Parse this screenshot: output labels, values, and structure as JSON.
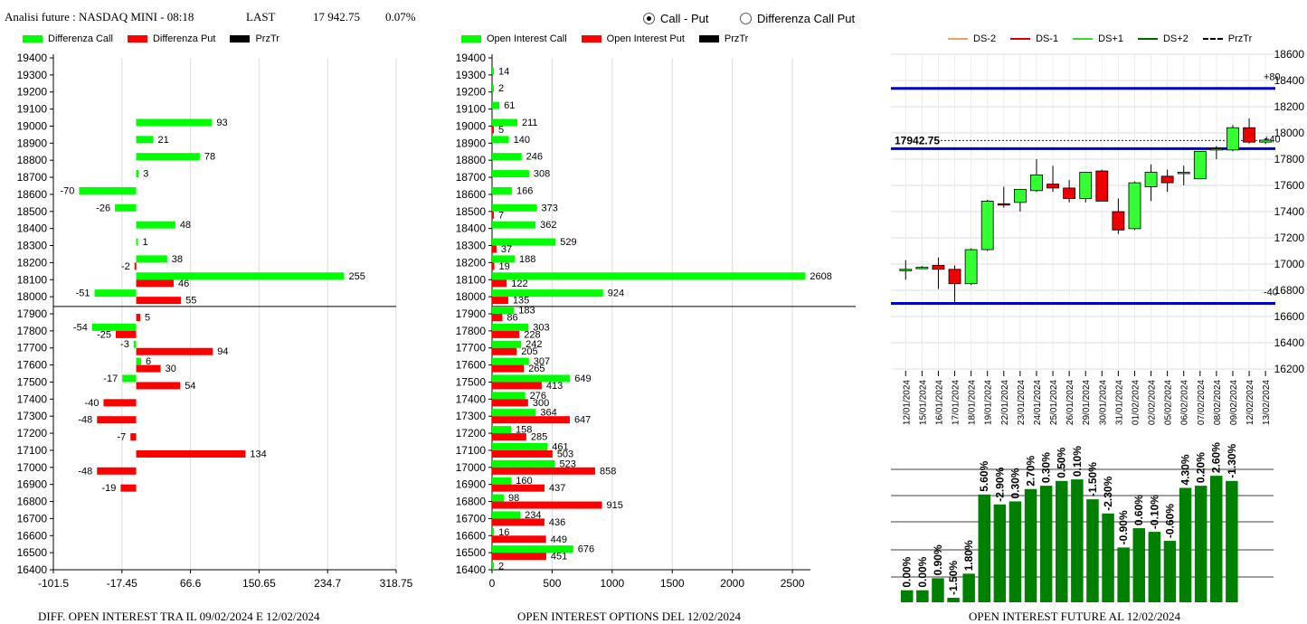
{
  "header": {
    "title": "Analisi future : NASDAQ MINI - 08:18",
    "last_label": "LAST",
    "last_value": "17 942.75",
    "change": "0.07%"
  },
  "mode": {
    "options": [
      "Call - Put",
      "Differenza Call Put"
    ],
    "selected": "Call - Put"
  },
  "footers": {
    "left": "DIFF. OPEN INTEREST TRA IL 09/02/2024 E 12/02/2024",
    "middle": "OPEN INTEREST OPTIONS DEL 12/02/2024",
    "right": "OPEN INTEREST FUTURE AL 12/02/2024"
  },
  "chart_data": [
    {
      "type": "bar",
      "orientation": "horizontal",
      "legend": [
        "Differenza Call",
        "Differenza Put",
        "PrzTr"
      ],
      "colors": {
        "call": "#00ff00",
        "put": "#ff0000",
        "price": "#000000"
      },
      "strikes": [
        19400,
        19300,
        19200,
        19100,
        19000,
        18900,
        18800,
        18700,
        18600,
        18500,
        18400,
        18300,
        18200,
        18100,
        18000,
        17900,
        17800,
        17700,
        17600,
        17500,
        17400,
        17300,
        17200,
        17100,
        17000,
        16900,
        16800,
        16700,
        16600,
        16500,
        16400
      ],
      "series": [
        {
          "name": "Differenza Call",
          "values": [
            null,
            null,
            null,
            null,
            93,
            21,
            78,
            3,
            -70,
            -26,
            48,
            1,
            38,
            255,
            -51,
            null,
            -54,
            -3,
            6,
            -17,
            null,
            null,
            null,
            null,
            null,
            null,
            null,
            null,
            null,
            null,
            null
          ]
        },
        {
          "name": "Differenza Put",
          "values": [
            null,
            null,
            null,
            null,
            null,
            null,
            null,
            null,
            null,
            null,
            null,
            null,
            -2,
            46,
            55,
            5,
            -25,
            94,
            30,
            54,
            -40,
            -48,
            -7,
            134,
            -48,
            -19,
            null,
            null,
            null,
            null,
            null
          ]
        }
      ],
      "price_line": 17942.75,
      "xticks": [
        "-101.5",
        "-17.45",
        "66.6",
        "150.65",
        "234.7",
        "318.75"
      ],
      "xlim": [
        -101.5,
        318.75
      ],
      "grid": true
    },
    {
      "type": "bar",
      "orientation": "horizontal",
      "legend": [
        "Open Interest Call",
        "Open Interest Put",
        "PrzTr"
      ],
      "colors": {
        "call": "#00ff00",
        "put": "#ff0000",
        "price": "#000000"
      },
      "strikes": [
        19400,
        19300,
        19200,
        19100,
        19000,
        18900,
        18800,
        18700,
        18600,
        18500,
        18400,
        18300,
        18200,
        18100,
        18000,
        17900,
        17800,
        17700,
        17600,
        17500,
        17400,
        17300,
        17200,
        17100,
        17000,
        16900,
        16800,
        16700,
        16600,
        16500,
        16400
      ],
      "series": [
        {
          "name": "Open Interest Call",
          "values": [
            null,
            14,
            2,
            61,
            211,
            140,
            246,
            308,
            166,
            373,
            362,
            529,
            188,
            2608,
            924,
            183,
            303,
            242,
            307,
            649,
            276,
            364,
            158,
            461,
            523,
            160,
            98,
            234,
            16,
            676,
            2
          ]
        },
        {
          "name": "Open Interest Put",
          "values": [
            null,
            null,
            null,
            null,
            5,
            null,
            null,
            null,
            null,
            7,
            null,
            37,
            19,
            122,
            135,
            86,
            228,
            205,
            265,
            413,
            300,
            647,
            285,
            503,
            858,
            437,
            915,
            436,
            449,
            451,
            null
          ]
        }
      ],
      "price_line": 17942.75,
      "xticks": [
        "0",
        "500",
        "1000",
        "1500",
        "2000",
        "2500"
      ],
      "xlim": [
        0,
        2650
      ],
      "grid": true
    },
    {
      "type": "candlestick",
      "legend": [
        "DS-2",
        "DS-1",
        "DS+1",
        "DS+2",
        "PrzTr"
      ],
      "legend_colors": [
        "#e8a070",
        "#dd0000",
        "#33dd33",
        "#006600",
        "#000000"
      ],
      "dates": [
        "12/01/2024",
        "15/01/2024",
        "16/01/2024",
        "17/01/2024",
        "18/01/2024",
        "19/01/2024",
        "22/01/2024",
        "23/01/2024",
        "24/01/2024",
        "25/01/2024",
        "26/01/2024",
        "29/01/2024",
        "30/01/2024",
        "31/01/2024",
        "01/02/2024",
        "02/02/2024",
        "05/02/2024",
        "06/02/2024",
        "07/02/2024",
        "08/02/2024",
        "09/02/2024",
        "12/02/2024",
        "13/02/2024"
      ],
      "candles": [
        {
          "o": 16960,
          "h": 17030,
          "l": 16880,
          "c": 16960
        },
        {
          "o": 16975,
          "h": 16985,
          "l": 16965,
          "c": 16975
        },
        {
          "o": 16990,
          "h": 17050,
          "l": 16810,
          "c": 16960
        },
        {
          "o": 16960,
          "h": 16990,
          "l": 16710,
          "c": 16850
        },
        {
          "o": 16850,
          "h": 17120,
          "l": 16840,
          "c": 17110
        },
        {
          "o": 17110,
          "h": 17490,
          "l": 17100,
          "c": 17480
        },
        {
          "o": 17460,
          "h": 17590,
          "l": 17430,
          "c": 17450
        },
        {
          "o": 17470,
          "h": 17570,
          "l": 17400,
          "c": 17570
        },
        {
          "o": 17560,
          "h": 17800,
          "l": 17550,
          "c": 17680
        },
        {
          "o": 17610,
          "h": 17750,
          "l": 17550,
          "c": 17580
        },
        {
          "o": 17580,
          "h": 17640,
          "l": 17470,
          "c": 17500
        },
        {
          "o": 17500,
          "h": 17700,
          "l": 17470,
          "c": 17700
        },
        {
          "o": 17710,
          "h": 17720,
          "l": 17480,
          "c": 17480
        },
        {
          "o": 17400,
          "h": 17500,
          "l": 17230,
          "c": 17260
        },
        {
          "o": 17270,
          "h": 17630,
          "l": 17260,
          "c": 17620
        },
        {
          "o": 17590,
          "h": 17760,
          "l": 17480,
          "c": 17700
        },
        {
          "o": 17670,
          "h": 17720,
          "l": 17550,
          "c": 17620
        },
        {
          "o": 17690,
          "h": 17750,
          "l": 17600,
          "c": 17700
        },
        {
          "o": 17650,
          "h": 17860,
          "l": 17650,
          "c": 17860
        },
        {
          "o": 17870,
          "h": 17900,
          "l": 17800,
          "c": 17880
        },
        {
          "o": 17870,
          "h": 18060,
          "l": 17860,
          "c": 18040
        },
        {
          "o": 18040,
          "h": 18110,
          "l": 17920,
          "c": 17930
        },
        {
          "o": 17930,
          "h": 17960,
          "l": 17915,
          "c": 17945
        }
      ],
      "hlines": [
        {
          "label": "+80",
          "value": 18340,
          "color": "#0000cc"
        },
        {
          "label": "",
          "value": 17880,
          "color": "#0000cc"
        },
        {
          "label": "-40",
          "value": 16700,
          "color": "#0000cc"
        }
      ],
      "price_line": {
        "label": "17942.75",
        "value": 17942.75
      },
      "side_label_40": "+40",
      "yticks": [
        "18600",
        "18400",
        "18200",
        "18000",
        "17800",
        "17600",
        "17400",
        "17200",
        "17000",
        "16800",
        "16600",
        "16400",
        "16200"
      ],
      "ylim": [
        16200,
        18600
      ],
      "grid": true
    },
    {
      "type": "bar",
      "labels": [
        "0.00%",
        "0.00%",
        "0.90%",
        "-1.50%",
        "1.80%",
        "5.60%",
        "-2.90%",
        "0.30%",
        "2.70%",
        "0.30%",
        "0.50%",
        "0.10%",
        "-1.50%",
        "-2.30%",
        "-0.90%",
        "0.60%",
        "-0.10%",
        "-0.60%",
        "4.30%",
        "0.20%",
        "2.60%",
        "-1.30%"
      ],
      "values": [
        4,
        4,
        8,
        1.5,
        9.5,
        35.8,
        32.5,
        33.5,
        37.6,
        38.7,
        40.3,
        40.8,
        34.2,
        29.5,
        18.2,
        24.6,
        23.4,
        20.4,
        38.0,
        38.7,
        42.0,
        40.3
      ],
      "color": "#008000",
      "grid": true
    }
  ]
}
